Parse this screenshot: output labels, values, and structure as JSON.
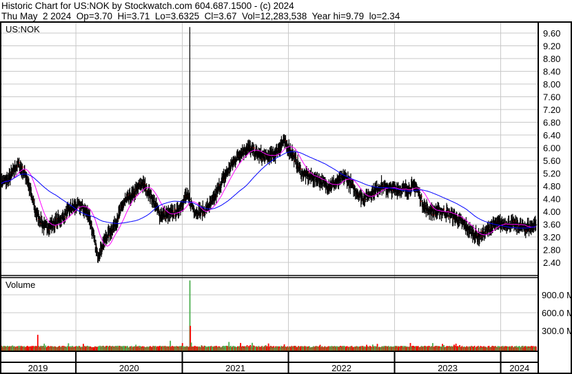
{
  "header": {
    "title": "Historic Chart for US:NOK by Stockwatch.com 604.687.1500 - (c) 2024",
    "quote": "Thu May  2 2024  Op=3.70  Hi=3.71  Lo=3.6325  Cl=3.67  Vol=12,283,538  Year hi=9.79  lo=2.34"
  },
  "chart_data": {
    "type": "candlestick",
    "symbol_label": "US:NOK",
    "volume_label": "Volume",
    "price_ticks": [
      "9.60",
      "9.20",
      "8.80",
      "8.40",
      "8.00",
      "7.60",
      "7.20",
      "6.80",
      "6.40",
      "6.00",
      "5.60",
      "5.20",
      "4.80",
      "4.40",
      "4.00",
      "3.60",
      "3.20",
      "2.80",
      "2.40"
    ],
    "price_range": [
      2.2,
      9.85
    ],
    "volume_ticks": [
      "900.0 M",
      "600.0 M",
      "300.0 M"
    ],
    "volume_range_millions": [
      0,
      1200
    ],
    "year_labels": [
      "2019",
      "2020",
      "2021",
      "2022",
      "2023",
      "2024"
    ],
    "x_range": [
      "2019-04-15",
      "2024-05-02"
    ],
    "monthly_close": [
      [
        "2019-04",
        4.9
      ],
      [
        "2019-05",
        5.0
      ],
      [
        "2019-06",
        5.5
      ],
      [
        "2019-07",
        5.1
      ],
      [
        "2019-08",
        4.0
      ],
      [
        "2019-09",
        3.5
      ],
      [
        "2019-10",
        3.6
      ],
      [
        "2019-11",
        3.8
      ],
      [
        "2019-12",
        4.1
      ],
      [
        "2020-01",
        4.2
      ],
      [
        "2020-02",
        3.9
      ],
      [
        "2020-03",
        2.6
      ],
      [
        "2020-04",
        3.2
      ],
      [
        "2020-05",
        3.6
      ],
      [
        "2020-06",
        4.3
      ],
      [
        "2020-07",
        4.5
      ],
      [
        "2020-08",
        4.9
      ],
      [
        "2020-09",
        4.5
      ],
      [
        "2020-10",
        3.9
      ],
      [
        "2020-11",
        3.9
      ],
      [
        "2020-12",
        4.0
      ],
      [
        "2021-01",
        4.5
      ],
      [
        "2021-02",
        4.0
      ],
      [
        "2021-03",
        4.0
      ],
      [
        "2021-04",
        4.3
      ],
      [
        "2021-05",
        4.9
      ],
      [
        "2021-06",
        5.4
      ],
      [
        "2021-07",
        5.8
      ],
      [
        "2021-08",
        6.0
      ],
      [
        "2021-09",
        5.8
      ],
      [
        "2021-10",
        5.7
      ],
      [
        "2021-11",
        5.8
      ],
      [
        "2021-12",
        6.2
      ],
      [
        "2022-01",
        5.8
      ],
      [
        "2022-02",
        5.2
      ],
      [
        "2022-03",
        5.1
      ],
      [
        "2022-04",
        5.0
      ],
      [
        "2022-05",
        4.8
      ],
      [
        "2022-06",
        4.9
      ],
      [
        "2022-07",
        5.1
      ],
      [
        "2022-08",
        4.7
      ],
      [
        "2022-09",
        4.4
      ],
      [
        "2022-10",
        4.6
      ],
      [
        "2022-11",
        4.8
      ],
      [
        "2022-12",
        4.7
      ],
      [
        "2023-01",
        4.7
      ],
      [
        "2023-02",
        4.7
      ],
      [
        "2023-03",
        4.8
      ],
      [
        "2023-04",
        4.1
      ],
      [
        "2023-05",
        4.0
      ],
      [
        "2023-06",
        4.0
      ],
      [
        "2023-07",
        3.9
      ],
      [
        "2023-08",
        3.7
      ],
      [
        "2023-09",
        3.4
      ],
      [
        "2023-10",
        3.2
      ],
      [
        "2023-11",
        3.4
      ],
      [
        "2023-12",
        3.6
      ],
      [
        "2024-01",
        3.6
      ],
      [
        "2024-02",
        3.6
      ],
      [
        "2024-03",
        3.5
      ],
      [
        "2024-04",
        3.5
      ],
      [
        "2024-05",
        3.67
      ]
    ],
    "price_spikes": [
      [
        "2021-01-27",
        9.79
      ]
    ],
    "volume_baseline_millions": 35,
    "volume_spikes_millions": [
      [
        "2019-08-22",
        230
      ],
      [
        "2020-11-20",
        130
      ],
      [
        "2021-01-27",
        1140
      ],
      [
        "2021-01-28",
        660
      ],
      [
        "2021-01-29",
        380
      ],
      [
        "2021-06-10",
        110
      ]
    ],
    "series": [
      {
        "name": "price",
        "color": "#000000"
      },
      {
        "name": "ma-short",
        "color": "#ff00ff"
      },
      {
        "name": "ma-long",
        "color": "#0000ff"
      }
    ],
    "volume_colors": {
      "up": "#4caf50",
      "down": "#ff0000"
    },
    "grid": true
  }
}
